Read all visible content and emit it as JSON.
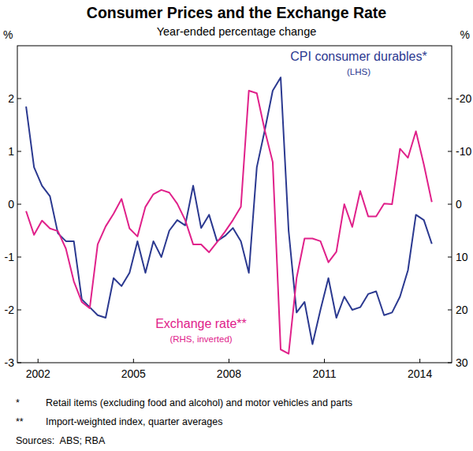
{
  "chart_data": {
    "type": "line",
    "title": "Consumer Prices and the Exchange Rate",
    "subtitle": "Year-ended percentage change",
    "y_unit": "%",
    "y2_unit": "%",
    "x": [
      2001.625,
      2001.875,
      2002.125,
      2002.375,
      2002.625,
      2002.875,
      2003.125,
      2003.375,
      2003.625,
      2003.875,
      2004.125,
      2004.375,
      2004.625,
      2004.875,
      2005.125,
      2005.375,
      2005.625,
      2005.875,
      2006.125,
      2006.375,
      2006.625,
      2006.875,
      2007.125,
      2007.375,
      2007.625,
      2007.875,
      2008.125,
      2008.375,
      2008.625,
      2008.875,
      2009.125,
      2009.375,
      2009.625,
      2009.875,
      2010.125,
      2010.375,
      2010.625,
      2010.875,
      2011.125,
      2011.375,
      2011.625,
      2011.875,
      2012.125,
      2012.375,
      2012.625,
      2012.875,
      2013.125,
      2013.375,
      2013.625,
      2013.875,
      2014.125,
      2014.375
    ],
    "xlim": [
      2001.35,
      2015.0
    ],
    "xticks": [
      2002,
      2005,
      2008,
      2011,
      2014
    ],
    "ylim": [
      -3,
      3
    ],
    "yticks": [
      -3,
      -2,
      -1,
      0,
      1,
      2
    ],
    "y2lim": [
      30,
      -30
    ],
    "y2ticks": [
      30,
      20,
      10,
      0,
      -10,
      -20
    ],
    "grid": false,
    "series": [
      {
        "name": "CPI consumer durables*",
        "subname": "(LHS)",
        "color": "#2b3990",
        "axis": "y",
        "values": [
          1.85,
          0.7,
          0.35,
          0.15,
          -0.55,
          -0.7,
          -0.7,
          -1.8,
          -1.95,
          -2.1,
          -2.15,
          -1.4,
          -1.55,
          -1.3,
          -0.7,
          -1.3,
          -0.7,
          -1.0,
          -0.5,
          -0.3,
          -0.4,
          0.35,
          -0.45,
          -0.2,
          -0.7,
          -0.6,
          -0.45,
          -0.7,
          -1.3,
          0.7,
          1.4,
          2.15,
          2.4,
          -0.5,
          -2.05,
          -1.85,
          -2.65,
          -2.0,
          -1.4,
          -2.15,
          -1.75,
          -2.0,
          -1.95,
          -1.7,
          -1.65,
          -2.1,
          -2.05,
          -1.75,
          -1.25,
          -0.2,
          -0.3,
          -0.75
        ]
      },
      {
        "name": "Exchange rate**",
        "subname": "(RHS, inverted)",
        "color": "#e0218a",
        "axis": "y2",
        "values": [
          1.3,
          5.8,
          3.1,
          4.6,
          5.1,
          8.4,
          14.6,
          18.5,
          19.7,
          7.6,
          4.2,
          1.8,
          -1.0,
          4.6,
          6.1,
          0.5,
          -1.9,
          -2.7,
          -2.2,
          -0.1,
          3.0,
          7.6,
          7.6,
          9.1,
          7.2,
          5.2,
          3.0,
          0.5,
          -21.5,
          -21.0,
          -14.0,
          -8.0,
          27.5,
          28.3,
          14.0,
          6.5,
          6.5,
          7.0,
          11.0,
          9.0,
          0.0,
          4.3,
          -2.5,
          2.3,
          2.3,
          -0.1,
          0.0,
          -10.5,
          -8.8,
          -13.8,
          -7.5,
          -0.4
        ]
      }
    ],
    "notes": [
      {
        "mark": "*",
        "text": "Retail items (excluding food and alcohol) and motor vehicles and parts"
      },
      {
        "mark": "**",
        "text": "Import-weighted index, quarter averages"
      }
    ],
    "sources": "Sources:  ABS; RBA"
  }
}
